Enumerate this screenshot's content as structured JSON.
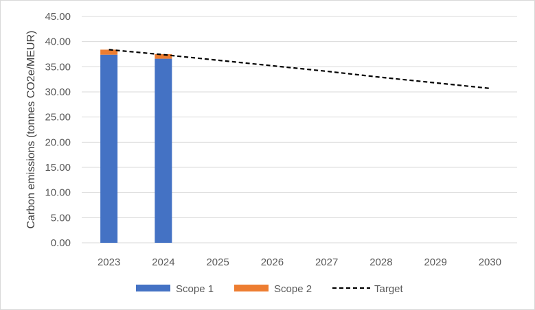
{
  "chart_data": {
    "type": "bar",
    "stacked": true,
    "categories": [
      "2023",
      "2024",
      "2025",
      "2026",
      "2027",
      "2028",
      "2029",
      "2030"
    ],
    "series": [
      {
        "name": "Scope 1",
        "kind": "bar",
        "color": "#4472c4",
        "values": [
          37.4,
          36.6,
          null,
          null,
          null,
          null,
          null,
          null
        ]
      },
      {
        "name": "Scope 2",
        "kind": "bar",
        "color": "#ed7d31",
        "values": [
          1.0,
          0.9,
          null,
          null,
          null,
          null,
          null,
          null
        ]
      },
      {
        "name": "Target",
        "kind": "line",
        "style": "dashed",
        "color": "#000000",
        "values": [
          38.4,
          37.4,
          36.3,
          35.2,
          34.1,
          32.9,
          31.8,
          30.7
        ]
      }
    ],
    "ylabel": "Carbon emissions (tonnes CO2e/MEUR)",
    "xlabel": "",
    "ylim": [
      0,
      45
    ],
    "yticks": [
      "0.00",
      "5.00",
      "10.00",
      "15.00",
      "20.00",
      "25.00",
      "30.00",
      "35.00",
      "40.00",
      "45.00"
    ],
    "grid": true,
    "legend_position": "bottom"
  }
}
